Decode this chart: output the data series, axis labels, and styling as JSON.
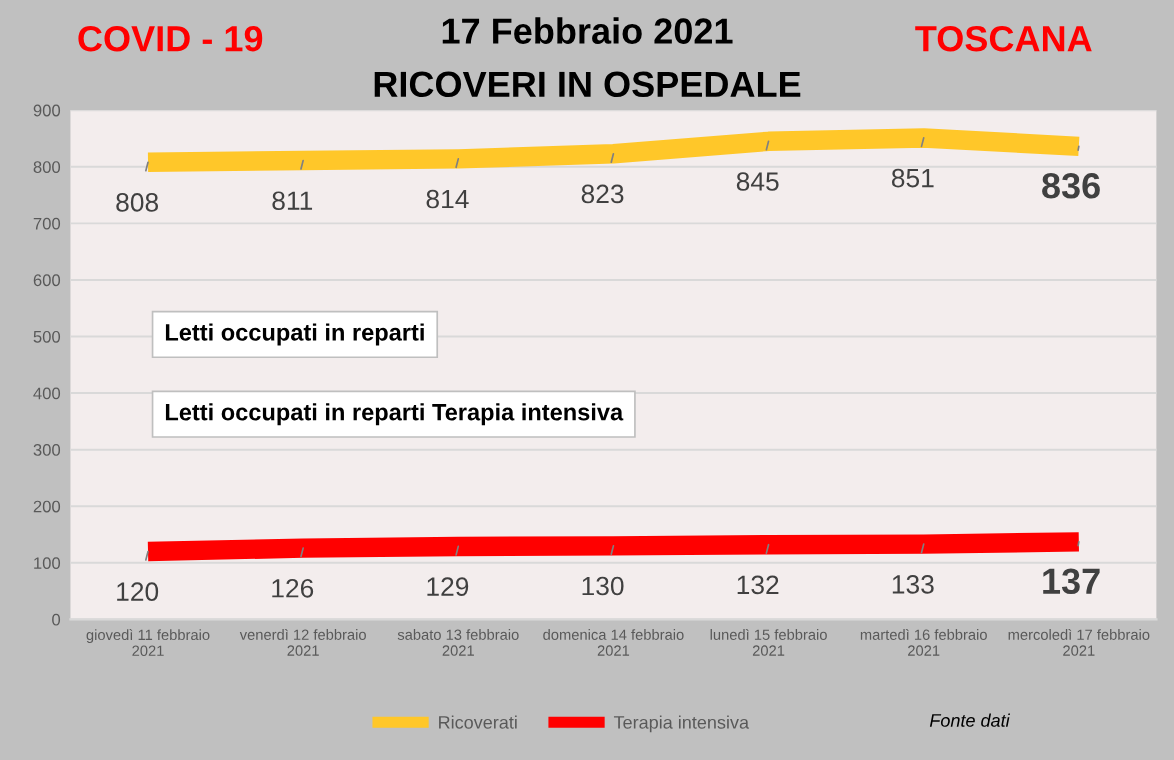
{
  "chart_data": {
    "type": "line",
    "title": "17 Febbraio 2021",
    "subtitle": "RICOVERI IN OSPEDALE",
    "annotations": [
      "COVID - 19",
      "TOSCANA",
      "Letti occupati in reparti",
      "Letti occupati in reparti Terapia intensiva",
      "Fonte dati"
    ],
    "categories": [
      "giovedì 11 febbraio 2021",
      "venerdì 12 febbraio 2021",
      "sabato 13 febbraio 2021",
      "domenica 14 febbraio 2021",
      "lunedì 15 febbraio 2021",
      "martedì 16 febbraio 2021",
      "mercoledì 17 febbraio 2021"
    ],
    "series": [
      {
        "name": "Ricoverati",
        "color": "#ffc729",
        "values": [
          808,
          811,
          814,
          823,
          845,
          851,
          836
        ]
      },
      {
        "name": "Terapia intensiva",
        "color": "#ff0000",
        "values": [
          120,
          126,
          129,
          130,
          132,
          133,
          137
        ]
      }
    ],
    "ylim": [
      0,
      900
    ],
    "yticks": [
      0,
      100,
      200,
      300,
      400,
      500,
      600,
      700,
      800,
      900
    ],
    "grid": "y",
    "legend": "bottom",
    "data_labels": true,
    "marker": "none",
    "line_style": "solid"
  }
}
